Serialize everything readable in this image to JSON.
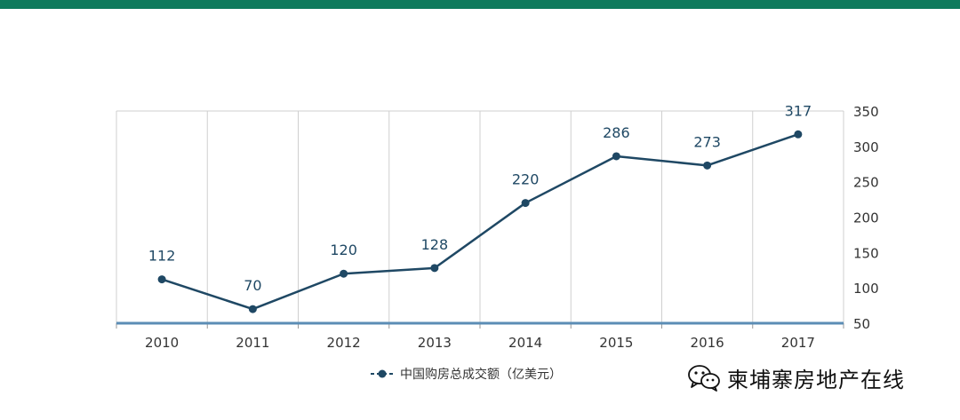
{
  "theme": {
    "accent": "#0f7a5c",
    "line": "#1f4864",
    "baseline": "#5b8db5",
    "grid": "#cfcfcf",
    "text": "#333333"
  },
  "legend": {
    "label": "中国购房总成交额（亿美元）"
  },
  "watermark": {
    "text": "柬埔寨房地产在线",
    "icon": "wechat-icon"
  },
  "chart_data": {
    "type": "line",
    "title": "",
    "xlabel": "",
    "ylabel": "",
    "categories": [
      "2010",
      "2011",
      "2012",
      "2013",
      "2014",
      "2015",
      "2016",
      "2017"
    ],
    "series": [
      {
        "name": "中国购房总成交额（亿美元）",
        "values": [
          112,
          70,
          120,
          128,
          220,
          286,
          273,
          317
        ]
      }
    ],
    "data_labels": [
      "112",
      "70",
      "120",
      "128",
      "220",
      "286",
      "273",
      "317"
    ],
    "y_ticks": [
      "50",
      "100",
      "150",
      "200",
      "250",
      "300",
      "350"
    ],
    "ylim": [
      50,
      350
    ],
    "y_axis_side": "right",
    "grid": "vertical",
    "legend_position": "bottom"
  }
}
